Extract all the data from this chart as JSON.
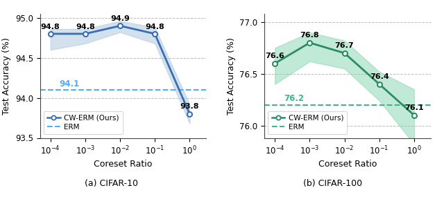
{
  "cifar10": {
    "x": [
      0.0001,
      0.001,
      0.01,
      0.1,
      1.0
    ],
    "y": [
      94.8,
      94.8,
      94.9,
      94.8,
      93.8
    ],
    "fill_low": [
      94.6,
      94.68,
      94.82,
      94.68,
      93.68
    ],
    "fill_high": [
      94.86,
      94.86,
      94.96,
      94.88,
      93.92
    ],
    "erm_value": 94.1,
    "erm_label": "94.1",
    "labels": [
      "94.8",
      "94.8",
      "94.9",
      "94.8",
      "93.8"
    ],
    "ylabel": "Test Accuracy (%)",
    "xlabel": "Coreset Ratio",
    "ylim": [
      93.5,
      95.05
    ],
    "yticks": [
      93.5,
      94.0,
      94.5,
      95.0
    ],
    "line_color": "#3a6faf",
    "fill_color": "#a8c4e0",
    "erm_color": "#5aaaee",
    "caption": "(a) CIFAR-10"
  },
  "cifar100": {
    "x": [
      0.0001,
      0.001,
      0.01,
      0.1,
      1.0
    ],
    "y": [
      76.6,
      76.8,
      76.7,
      76.4,
      76.1
    ],
    "fill_low": [
      76.4,
      76.62,
      76.55,
      76.24,
      75.82
    ],
    "fill_high": [
      76.75,
      76.9,
      76.82,
      76.52,
      76.35
    ],
    "erm_value": 76.2,
    "erm_label": "76.2",
    "labels": [
      "76.6",
      "76.8",
      "76.7",
      "76.4",
      "76.1"
    ],
    "ylabel": "Test Accuracy (%)",
    "xlabel": "Coreset Ratio",
    "ylim": [
      75.88,
      77.08
    ],
    "yticks": [
      76.0,
      76.5,
      77.0
    ],
    "line_color": "#2a8b65",
    "fill_color": "#85d4b0",
    "erm_color": "#3ab88a",
    "caption": "(b) CIFAR-100"
  },
  "background_color": "#ffffff",
  "grid_color": "#bbbbbb"
}
